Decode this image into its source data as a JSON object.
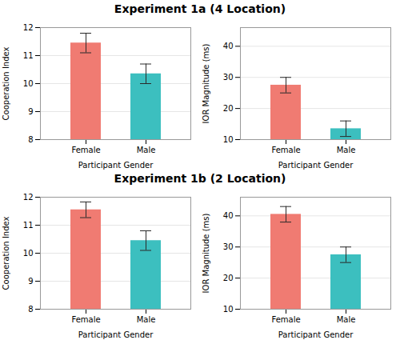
{
  "chart_data": [
    {
      "type": "bar",
      "title": "Experiment 1a (4 Location)",
      "categories": [
        "Female",
        "Male"
      ],
      "values": [
        11.45,
        10.35
      ],
      "errors": [
        0.35,
        0.35
      ],
      "colors": [
        "#F07B72",
        "#3CBFBF"
      ],
      "ylabel": "Cooperation Index",
      "xlabel": "Participant Gender",
      "ylim": [
        8,
        12
      ],
      "yticks": [
        8,
        9,
        10,
        11,
        12
      ],
      "grid": true
    },
    {
      "type": "bar",
      "categories": [
        "Female",
        "Male"
      ],
      "values": [
        27.5,
        13.5
      ],
      "errors": [
        2.5,
        2.5
      ],
      "colors": [
        "#F07B72",
        "#3CBFBF"
      ],
      "ylabel": "IOR Magnitude (ms)",
      "xlabel": "Participant Gender",
      "ylim": [
        10,
        46
      ],
      "yticks": [
        10,
        20,
        30,
        40
      ],
      "grid": true
    },
    {
      "type": "bar",
      "title": "Experiment 1b (2 Location)",
      "categories": [
        "Female",
        "Male"
      ],
      "values": [
        11.55,
        10.45
      ],
      "errors": [
        0.28,
        0.35
      ],
      "colors": [
        "#F07B72",
        "#3CBFBF"
      ],
      "ylabel": "Cooperation Index",
      "xlabel": "Participant Gender",
      "ylim": [
        8,
        12
      ],
      "yticks": [
        8,
        9,
        10,
        11,
        12
      ],
      "grid": true
    },
    {
      "type": "bar",
      "categories": [
        "Female",
        "Male"
      ],
      "values": [
        40.5,
        27.5
      ],
      "errors": [
        2.5,
        2.5
      ],
      "colors": [
        "#F07B72",
        "#3CBFBF"
      ],
      "ylabel": "IOR Magnitude (ms)",
      "xlabel": "Participant Gender",
      "ylim": [
        10,
        46
      ],
      "yticks": [
        10,
        20,
        30,
        40
      ],
      "grid": true
    }
  ]
}
